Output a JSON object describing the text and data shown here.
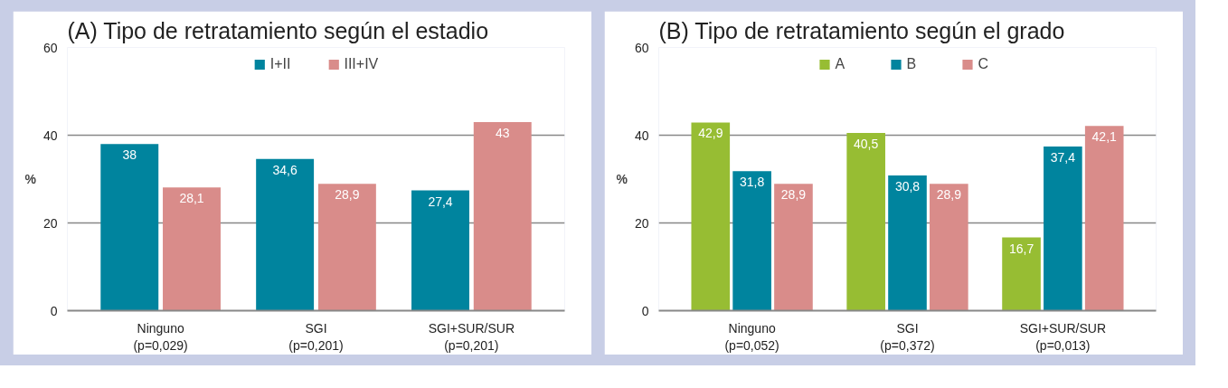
{
  "chart_data": [
    {
      "type": "bar",
      "title": "(A) Tipo de retratamiento según el estadio",
      "ylabel": "%",
      "categories": [
        "Ninguno\n(p=0,029)",
        "SGI\n(p=0,201)",
        "SGI+SUR/SUR\n(p=0,201)"
      ],
      "ylim": [
        0,
        60
      ],
      "yticks": [
        0,
        20,
        40,
        60
      ],
      "grid": "y",
      "legend": "top",
      "series": [
        {
          "name": "I+II",
          "color": "#00849e",
          "values": [
            38,
            34.6,
            27.4
          ],
          "value_labels": [
            "38",
            "34,6",
            "27,4"
          ]
        },
        {
          "name": "III+IV",
          "color": "#d98c8a",
          "values": [
            28.1,
            28.9,
            43
          ],
          "value_labels": [
            "28,1",
            "28,9",
            "43"
          ]
        }
      ]
    },
    {
      "type": "bar",
      "title": "(B) Tipo de retratamiento según el grado",
      "ylabel": "%",
      "categories": [
        "Ninguno\n(p=0,052)",
        "SGI\n(p=0,372)",
        "SGI+SUR/SUR\n(p=0,013)"
      ],
      "ylim": [
        0,
        60
      ],
      "yticks": [
        0,
        20,
        40,
        60
      ],
      "grid": "y",
      "legend": "top",
      "series": [
        {
          "name": "A",
          "color": "#97bd33",
          "values": [
            42.9,
            40.5,
            16.7
          ],
          "value_labels": [
            "42,9",
            "40,5",
            "16,7"
          ]
        },
        {
          "name": "B",
          "color": "#00849e",
          "values": [
            31.8,
            30.8,
            37.4
          ],
          "value_labels": [
            "31,8",
            "30,8",
            "37,4"
          ]
        },
        {
          "name": "C",
          "color": "#d98c8a",
          "values": [
            28.9,
            28.9,
            42.1
          ],
          "value_labels": [
            "28,9",
            "28,9",
            "42,1"
          ]
        }
      ]
    }
  ]
}
